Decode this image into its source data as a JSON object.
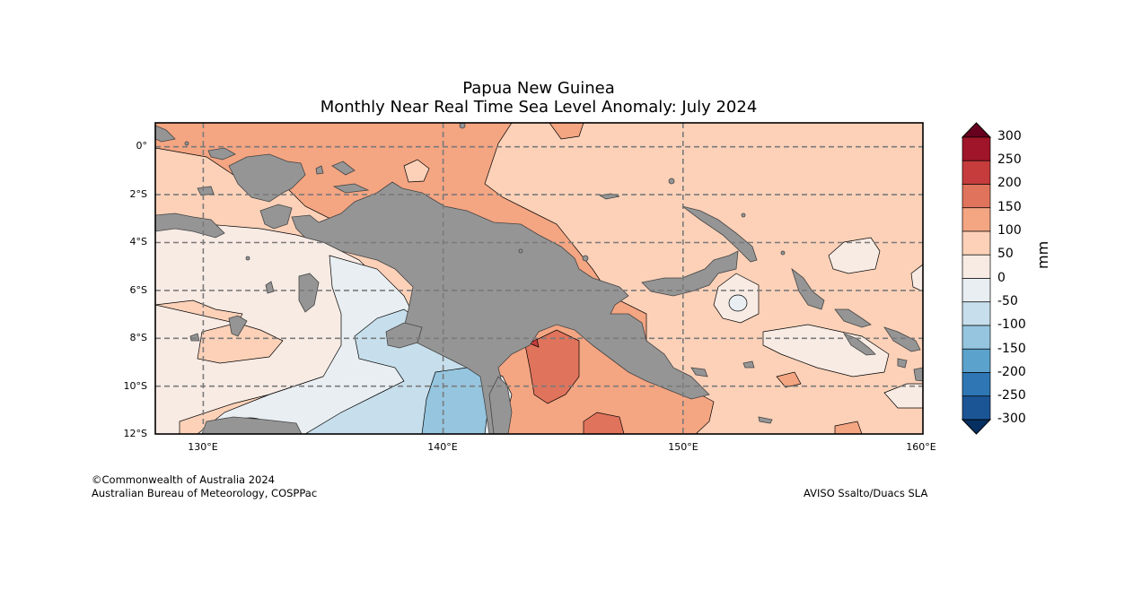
{
  "title": {
    "line1": "Papua New Guinea",
    "line2": "Monthly Near Real Time Sea Level Anomaly: July 2024"
  },
  "map": {
    "projection": "equirectangular",
    "lon_range": [
      128,
      160
    ],
    "lat_range": [
      -12,
      1
    ],
    "grid": true,
    "lat_ticks": [
      {
        "value": 0,
        "label": "0°"
      },
      {
        "value": -2,
        "label": "2°S"
      },
      {
        "value": -4,
        "label": "4°S"
      },
      {
        "value": -6,
        "label": "6°S"
      },
      {
        "value": -8,
        "label": "8°S"
      },
      {
        "value": -10,
        "label": "10°S"
      },
      {
        "value": -12,
        "label": "12°S"
      }
    ],
    "lon_ticks": [
      {
        "value": 130,
        "label": "130°E"
      },
      {
        "value": 140,
        "label": "140°E"
      },
      {
        "value": 150,
        "label": "150°E"
      },
      {
        "value": 160,
        "label": "160°E"
      }
    ],
    "land_color": "#959595",
    "background_anomaly_bin": "50 to 100"
  },
  "colorbar": {
    "unit": "mm",
    "ticks": [
      "300",
      "250",
      "200",
      "150",
      "100",
      "50",
      "0",
      "-50",
      "-100",
      "-150",
      "-200",
      "-250",
      "-300"
    ],
    "bins": [
      {
        "range": "250 to 300",
        "color": "#a01529"
      },
      {
        "range": "200 to 250",
        "color": "#c63c3c"
      },
      {
        "range": "150 to 200",
        "color": "#e0735c"
      },
      {
        "range": "100 to 150",
        "color": "#f4a582"
      },
      {
        "range": "50 to 100",
        "color": "#fcd1b8"
      },
      {
        "range": "0 to 50",
        "color": "#f8ebe4"
      },
      {
        "range": "-50 to 0",
        "color": "#e8eef2"
      },
      {
        "range": "-100 to -50",
        "color": "#c7dfec"
      },
      {
        "range": "-150 to -100",
        "color": "#95c5df"
      },
      {
        "range": "-200 to -150",
        "color": "#5ba2cc"
      },
      {
        "range": "-250 to -200",
        "color": "#2e76b4"
      },
      {
        "range": "-300 to -250",
        "color": "#1b5596"
      }
    ],
    "over_color": "#67001f",
    "under_color": "#053061"
  },
  "credits": {
    "left_line1": "©Commonwealth of Australia 2024",
    "left_line2": "Australian Bureau of Meteorology, COSPPac",
    "right": "AVISO Ssalto/Duacs SLA"
  }
}
